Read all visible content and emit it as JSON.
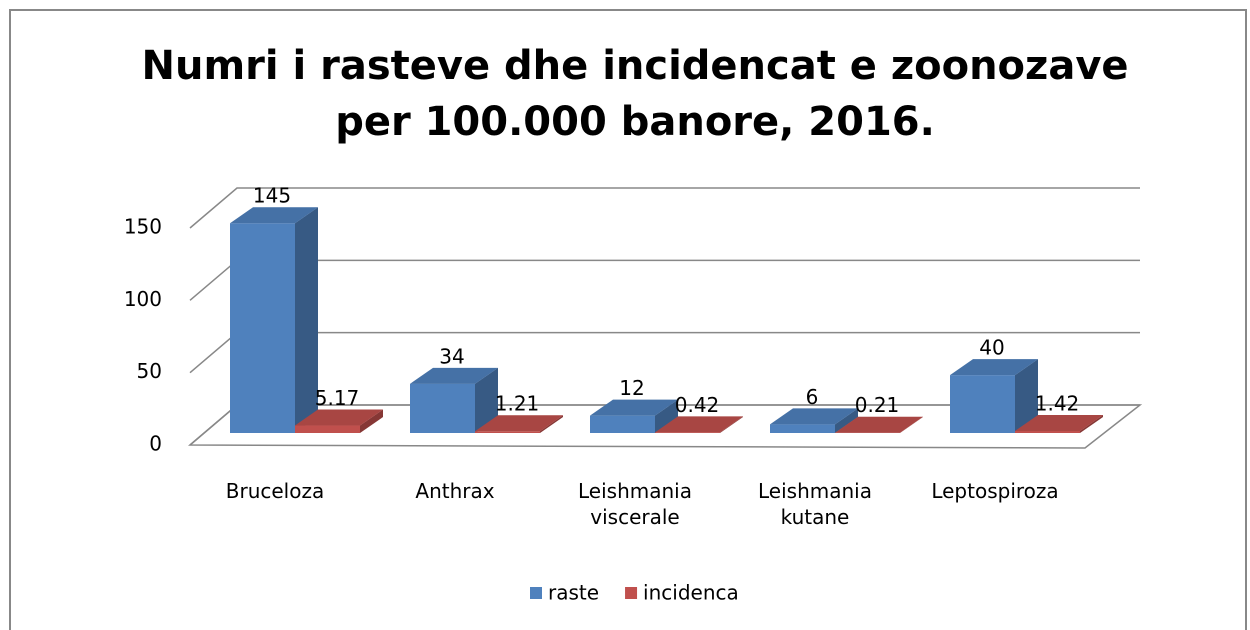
{
  "chart_data": {
    "type": "bar3d",
    "title": "Numri i rasteve dhe incidencat e zoonozave per 100.000 banore, 2016.",
    "categories": [
      "Bruceloza",
      "Anthrax",
      "Leishmania viscerale",
      "Leishmania kutane",
      "Leptospiroza"
    ],
    "series": [
      {
        "name": "raste",
        "color": "#4f81bd",
        "values": [
          145,
          34,
          12,
          6,
          40
        ]
      },
      {
        "name": "incidenca",
        "color": "#c0504d",
        "values": [
          5.17,
          1.21,
          0.42,
          0.21,
          1.42
        ]
      }
    ],
    "ylim": [
      0,
      150
    ],
    "yticks": [
      0,
      50,
      100,
      150
    ],
    "grid": true,
    "legend": "bottom",
    "data_labels": true
  }
}
